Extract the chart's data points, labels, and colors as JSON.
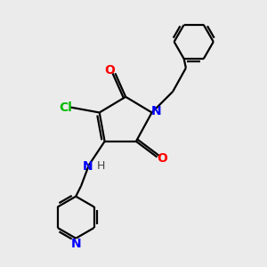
{
  "background_color": "#ebebeb",
  "bond_color": "#000000",
  "N_color": "#0000ff",
  "O_color": "#ff0000",
  "Cl_color": "#00bb00",
  "line_width": 1.6,
  "figsize": [
    3.0,
    3.0
  ],
  "dpi": 100,
  "xlim": [
    0,
    10
  ],
  "ylim": [
    0,
    10
  ]
}
